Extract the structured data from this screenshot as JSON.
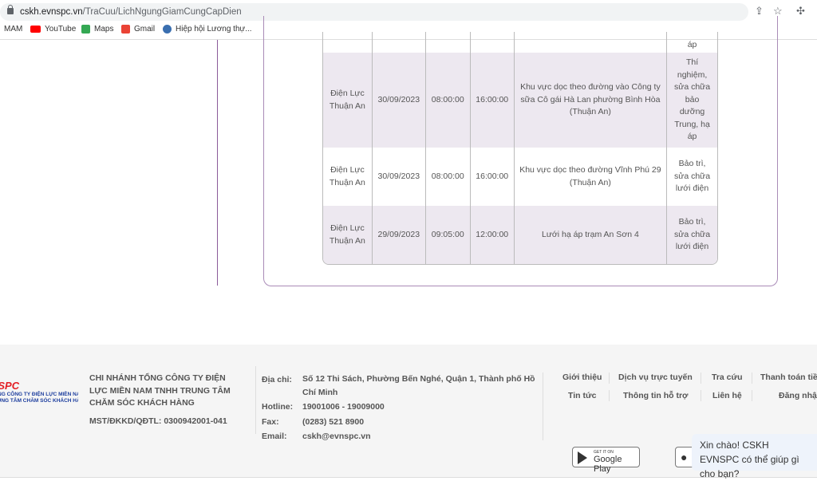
{
  "browser": {
    "url_host": "cskh.evnspc.vn",
    "url_path": "/TraCuu/LichNgungGiamCungCapDien",
    "bookmarks": [
      {
        "label": "MAM",
        "icon": "none"
      },
      {
        "label": "YouTube",
        "icon": "youtube-icon"
      },
      {
        "label": "Maps",
        "icon": "maps-icon"
      },
      {
        "label": "Gmail",
        "icon": "gmail-icon"
      },
      {
        "label": "Hiệp hội Lương thự...",
        "icon": "globe-icon"
      }
    ]
  },
  "table": {
    "rows": [
      {
        "unit": "",
        "date": "",
        "start": "",
        "end": "",
        "area": "",
        "reason": "áp"
      },
      {
        "unit": "Điện Lực Thuận An",
        "date": "30/09/2023",
        "start": "08:00:00",
        "end": "16:00:00",
        "area": "Khu vực dọc theo đường vào Công ty sữa Cô gái Hà Lan phường Bình Hòa (Thuận An)",
        "reason": "Thí nghiệm, sửa chữa bảo dưỡng Trung, hạ áp"
      },
      {
        "unit": "Điện Lực Thuận An",
        "date": "30/09/2023",
        "start": "08:00:00",
        "end": "16:00:00",
        "area": "Khu vực dọc theo đường Vĩnh Phú 29 (Thuận An)",
        "reason": "Bảo trì, sửa chữa lưới điện"
      },
      {
        "unit": "Điện Lực Thuận An",
        "date": "29/09/2023",
        "start": "09:05:00",
        "end": "12:00:00",
        "area": "Lưới hạ áp trạm An Sơn 4",
        "reason": "Bảo trì, sửa chữa lưới điện"
      }
    ]
  },
  "footer": {
    "logo": {
      "brand": "EVNSPC",
      "line1": "TỔNG CÔNG TY ĐIỆN LỰC MIỀN NAM",
      "line2": "TRUNG TÂM CHĂM SÓC KHÁCH HÀNG"
    },
    "company": "CHI NHÁNH TỔNG CÔNG TY ĐIỆN LỰC MIỀN NAM TNHH TRUNG TÂM CHĂM SÓC KHÁCH HÀNG",
    "mst": "MST/ĐKKD/QĐTL: 0300942001-041",
    "contact": [
      {
        "k": "Địa chỉ:",
        "v": "Số 12 Thi Sách, Phường Bến Nghé, Quận 1, Thành phố Hồ Chí Minh"
      },
      {
        "k": "Hotline:",
        "v": "19001006 - 19009000"
      },
      {
        "k": "Fax:",
        "v": "(0283) 521 8900"
      },
      {
        "k": "Email:",
        "v": "cskh@evnspc.vn"
      }
    ],
    "links": [
      "Giới thiệu",
      "Dịch vụ trực tuyến",
      "Tra cứu",
      "Thanh toán tiền",
      "Tin tức",
      "Thông tin hỗ trợ",
      "Liên hệ",
      "Đăng nhập"
    ],
    "google_play": {
      "small": "GET IT ON",
      "big": "Google Play"
    }
  },
  "chat": {
    "message": "Xin chào! CSKH EVNSPC có thể giúp gì cho bạn?"
  }
}
